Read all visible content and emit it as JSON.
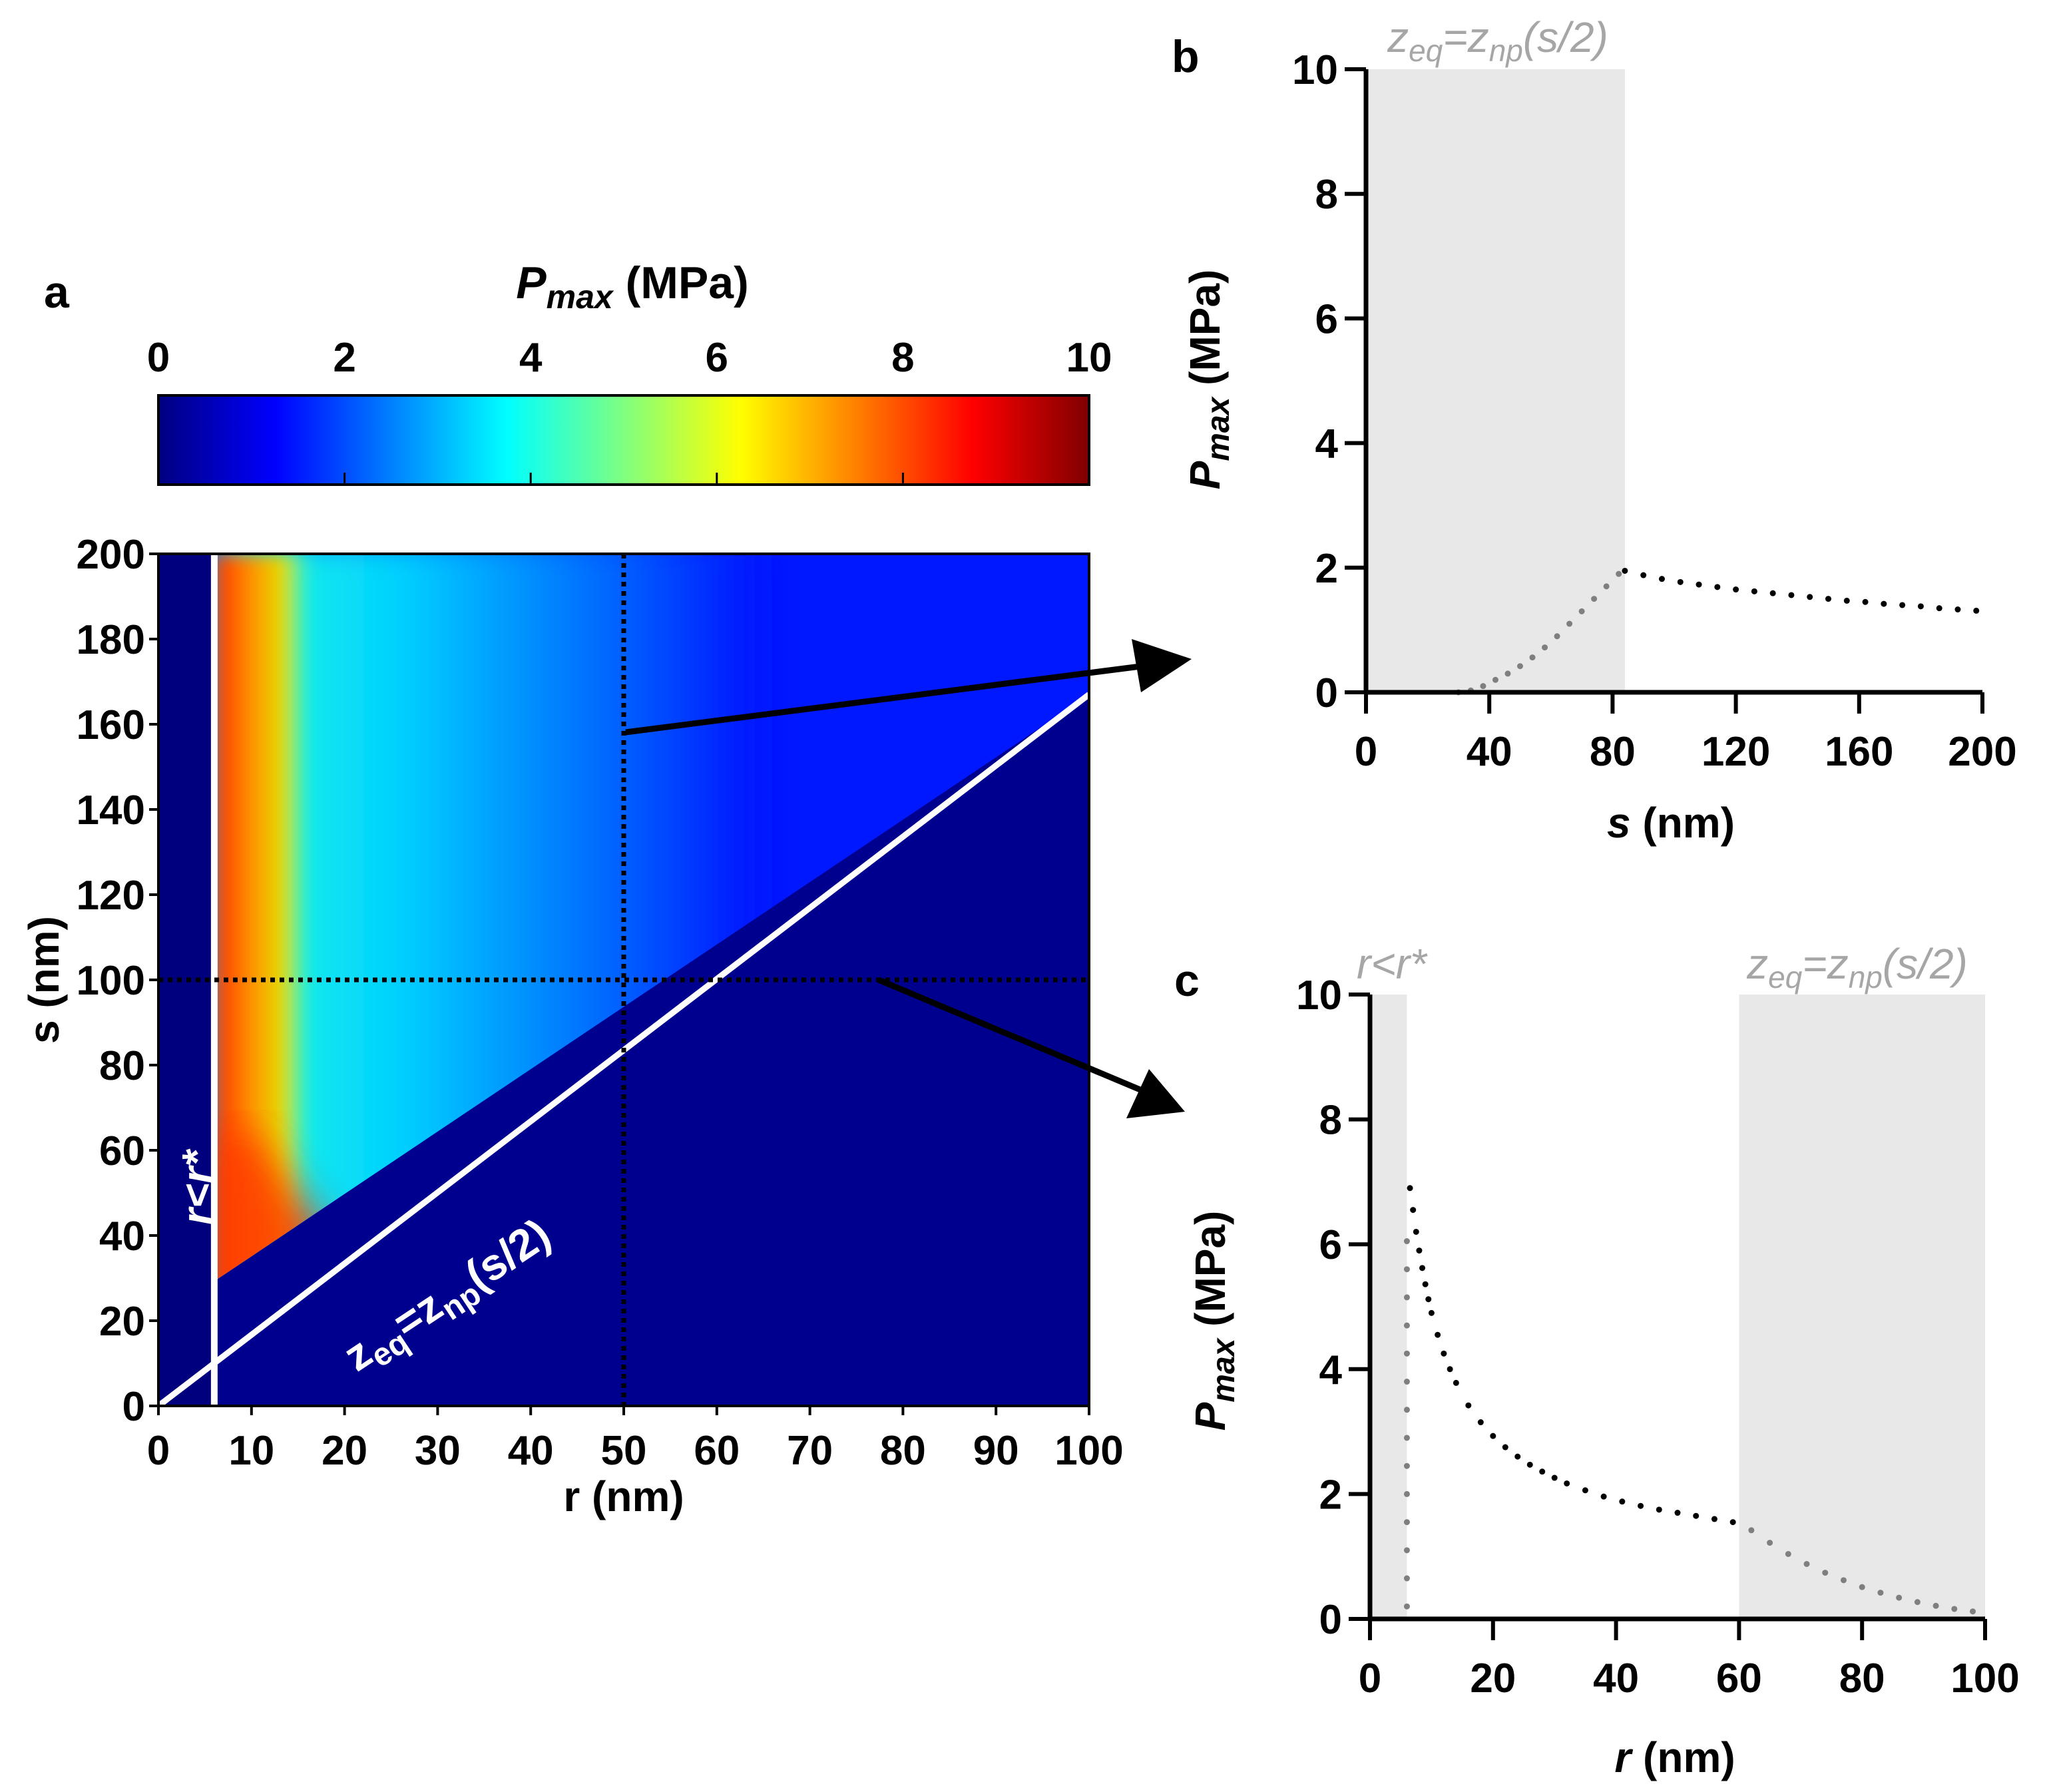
{
  "chart_data": [
    {
      "id": "a",
      "type": "heatmap",
      "panel_label": "a",
      "colorbar": {
        "title_main": "P",
        "title_sub": "max",
        "title_unit": " (MPa)",
        "range": [
          0,
          10
        ],
        "ticks": [
          0,
          2,
          4,
          6,
          8,
          10
        ],
        "colormap": "jet",
        "stops": [
          "#00007f",
          "#0000ff",
          "#00ffff",
          "#ffff00",
          "#ff0000",
          "#7f0000"
        ]
      },
      "xlabel": "r (nm)",
      "ylabel": "s (nm)",
      "xlim": [
        0,
        100
      ],
      "ylim": [
        0,
        200
      ],
      "xticks": [
        0,
        10,
        20,
        30,
        40,
        50,
        60,
        70,
        80,
        90,
        100
      ],
      "yticks": [
        0,
        20,
        40,
        60,
        80,
        100,
        120,
        140,
        160,
        180,
        200
      ],
      "boundary_vertical": {
        "r": 6
      },
      "boundary_line": {
        "from": [
          0,
          0
        ],
        "to": [
          100,
          167
        ]
      },
      "cut_vertical": {
        "r": 50
      },
      "cut_horizontal": {
        "s": 100
      },
      "label_vertical": "r<r*",
      "label_line": {
        "z1": "z",
        "sub1": "eq",
        "mid": "=z",
        "sub2": "np",
        "tail": "(s/2)"
      }
    },
    {
      "id": "b",
      "type": "scatter",
      "panel_label": "b",
      "xlabel": "s (nm)",
      "ylabel": "P max (MPa)",
      "xlim": [
        0,
        200
      ],
      "ylim": [
        0,
        10
      ],
      "xticks": [
        0,
        40,
        80,
        120,
        160,
        200
      ],
      "yticks": [
        0,
        2,
        4,
        6,
        8,
        10
      ],
      "shaded_regions": [
        {
          "from": 0,
          "to": 84
        }
      ],
      "shade_label": {
        "z1": "z",
        "sub1": "eq",
        "mid": "=z",
        "sub2": "np",
        "tail": "(s/2)"
      },
      "series": [
        {
          "name": "shaded",
          "color": "#7f7f7f",
          "x": [
            30,
            34,
            38,
            42,
            46,
            50,
            54,
            58,
            62,
            66,
            70,
            74,
            78,
            82
          ],
          "y": [
            0.0,
            0.03,
            0.1,
            0.2,
            0.3,
            0.42,
            0.56,
            0.72,
            0.9,
            1.1,
            1.3,
            1.5,
            1.7,
            1.9
          ]
        },
        {
          "name": "valid",
          "color": "#000000",
          "x": [
            84,
            90,
            96,
            102,
            108,
            114,
            120,
            126,
            132,
            138,
            144,
            150,
            156,
            162,
            168,
            174,
            180,
            186,
            192,
            198
          ],
          "y": [
            1.95,
            1.88,
            1.82,
            1.77,
            1.73,
            1.69,
            1.65,
            1.62,
            1.59,
            1.56,
            1.53,
            1.5,
            1.47,
            1.45,
            1.42,
            1.4,
            1.38,
            1.35,
            1.33,
            1.31
          ]
        }
      ]
    },
    {
      "id": "c",
      "type": "scatter",
      "panel_label": "c",
      "xlabel": "r (nm)",
      "ylabel": "P max (MPa)",
      "xlim": [
        0,
        100
      ],
      "ylim": [
        0,
        10
      ],
      "xticks": [
        0,
        20,
        40,
        60,
        80,
        100
      ],
      "yticks": [
        0,
        2,
        4,
        6,
        8,
        10
      ],
      "shaded_regions": [
        {
          "from": 0,
          "to": 6
        },
        {
          "from": 60,
          "to": 100
        }
      ],
      "shade_label_left": "r<r*",
      "shade_label_right": {
        "z1": "z",
        "sub1": "eq",
        "mid": "=z",
        "sub2": "np",
        "tail": "(s/2)"
      },
      "series": [
        {
          "name": "shaded-left",
          "color": "#7f7f7f",
          "x": [
            6,
            6,
            6,
            6,
            6,
            6,
            6,
            6,
            6,
            6,
            6,
            6,
            6,
            6
          ],
          "y": [
            0.2,
            0.65,
            1.1,
            1.55,
            2.0,
            2.45,
            2.9,
            3.35,
            3.8,
            4.25,
            4.7,
            5.15,
            5.6,
            6.05
          ]
        },
        {
          "name": "valid",
          "color": "#000000",
          "x": [
            6.5,
            7,
            7.5,
            8,
            8.5,
            9,
            9.5,
            10,
            11,
            12,
            13,
            14,
            16,
            18,
            20,
            22,
            24,
            26,
            28,
            30,
            32,
            35,
            38,
            41,
            44,
            47,
            50,
            53,
            56,
            59
          ],
          "y": [
            6.9,
            6.55,
            6.2,
            5.9,
            5.62,
            5.36,
            5.12,
            4.9,
            4.55,
            4.25,
            4.0,
            3.78,
            3.42,
            3.15,
            2.93,
            2.75,
            2.6,
            2.47,
            2.36,
            2.26,
            2.17,
            2.06,
            1.96,
            1.88,
            1.81,
            1.75,
            1.7,
            1.65,
            1.6,
            1.55
          ]
        },
        {
          "name": "shaded-right",
          "color": "#7f7f7f",
          "x": [
            62,
            65,
            68,
            71,
            74,
            77,
            80,
            83,
            86,
            89,
            92,
            95,
            98
          ],
          "y": [
            1.42,
            1.22,
            1.04,
            0.88,
            0.74,
            0.62,
            0.51,
            0.42,
            0.34,
            0.27,
            0.21,
            0.16,
            0.12
          ]
        }
      ]
    }
  ]
}
